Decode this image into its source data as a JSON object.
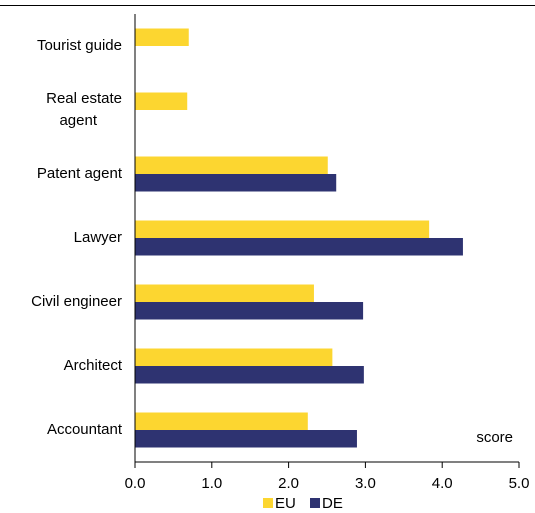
{
  "chart_data": {
    "type": "hbar",
    "categories": [
      "Tourist guide",
      "Real estate agent",
      "Patent agent",
      "Lawyer",
      "Civil engineer",
      "Architect",
      "Accountant"
    ],
    "series": [
      {
        "name": "EU",
        "color": "#fcd630",
        "values": [
          0.7,
          0.68,
          2.51,
          3.83,
          2.33,
          2.57,
          2.25
        ]
      },
      {
        "name": "DE",
        "color": "#2e3371",
        "values": [
          null,
          null,
          2.62,
          4.27,
          2.97,
          2.98,
          2.89
        ]
      }
    ],
    "xlim": [
      0,
      5
    ],
    "xticks": [
      {
        "value": 0,
        "label": "0.0"
      },
      {
        "value": 1,
        "label": "1.0"
      },
      {
        "value": 2,
        "label": "2.0"
      },
      {
        "value": 3,
        "label": "3.0"
      },
      {
        "value": 4,
        "label": "4.0"
      },
      {
        "value": 5,
        "label": "5.0"
      }
    ],
    "x_label": "score",
    "legend": "bottom"
  }
}
